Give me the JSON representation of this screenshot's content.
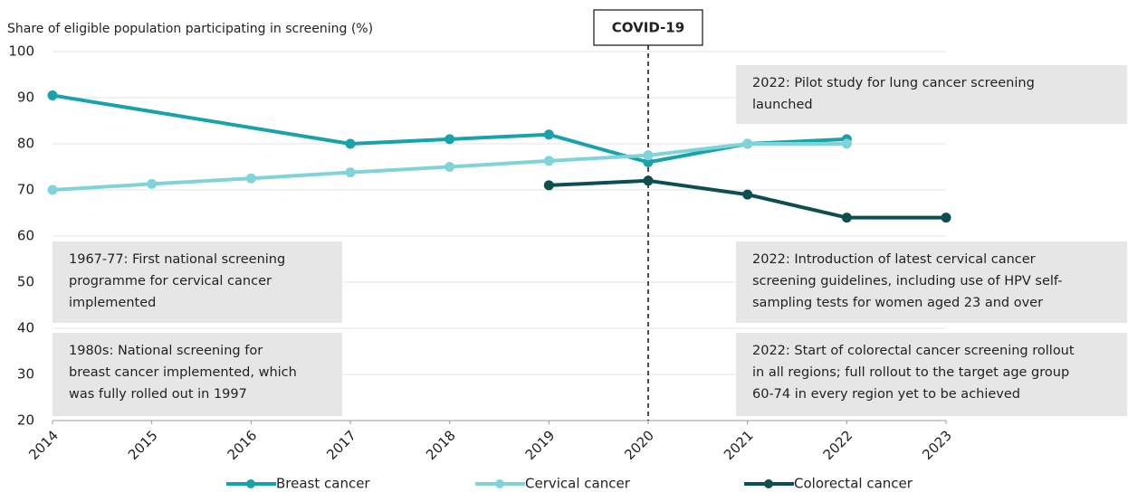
{
  "chart_data": {
    "type": "line",
    "y_label": "Share of eligible population participating in screening (%)",
    "xlim": [
      2014,
      2023
    ],
    "xticks": [
      2014,
      2015,
      2016,
      2017,
      2018,
      2019,
      2020,
      2021,
      2022,
      2023
    ],
    "ylim": [
      20,
      100
    ],
    "yticks": [
      20,
      30,
      40,
      50,
      60,
      70,
      80,
      90,
      100
    ],
    "grid": true,
    "series": [
      {
        "name": "Breast cancer",
        "color": "#18a3aa",
        "x": [
          2014,
          2017,
          2018,
          2019,
          2020,
          2021,
          2022
        ],
        "values": [
          90.5,
          80,
          81,
          82,
          76,
          80,
          81
        ]
      },
      {
        "name": "Cervical cancer",
        "color": "#80d4d9",
        "x": [
          2014,
          2015,
          2016,
          2017,
          2018,
          2019,
          2020,
          2021,
          2022
        ],
        "values": [
          70,
          71.3,
          72.5,
          73.8,
          75,
          76.3,
          77.5,
          80,
          80
        ]
      },
      {
        "name": "Colorectal cancer",
        "color": "#0d4f50",
        "x": [
          2019,
          2020,
          2021,
          2022,
          2023
        ],
        "values": [
          71,
          72,
          69,
          64,
          64
        ]
      }
    ],
    "event": {
      "label": "COVID-19",
      "x": 2020
    },
    "annotations": [
      {
        "lines": [
          "2022: Pilot study for lung cancer screening",
          "launched"
        ]
      },
      {
        "lines": [
          "1967-77: First national screening",
          "programme for cervical cancer",
          "implemented"
        ]
      },
      {
        "lines": [
          "1980s: National screening for",
          "breast cancer implemented, which",
          "was fully rolled out in 1997"
        ]
      },
      {
        "lines": [
          "2022: Introduction of latest cervical cancer",
          "screening guidelines, including use of HPV self-",
          "sampling tests for women aged 23 and over"
        ]
      },
      {
        "lines": [
          "2022: Start of colorectal cancer screening rollout",
          "in all regions; full rollout to the target age group",
          "60-74 in every region yet to be achieved"
        ]
      }
    ]
  }
}
